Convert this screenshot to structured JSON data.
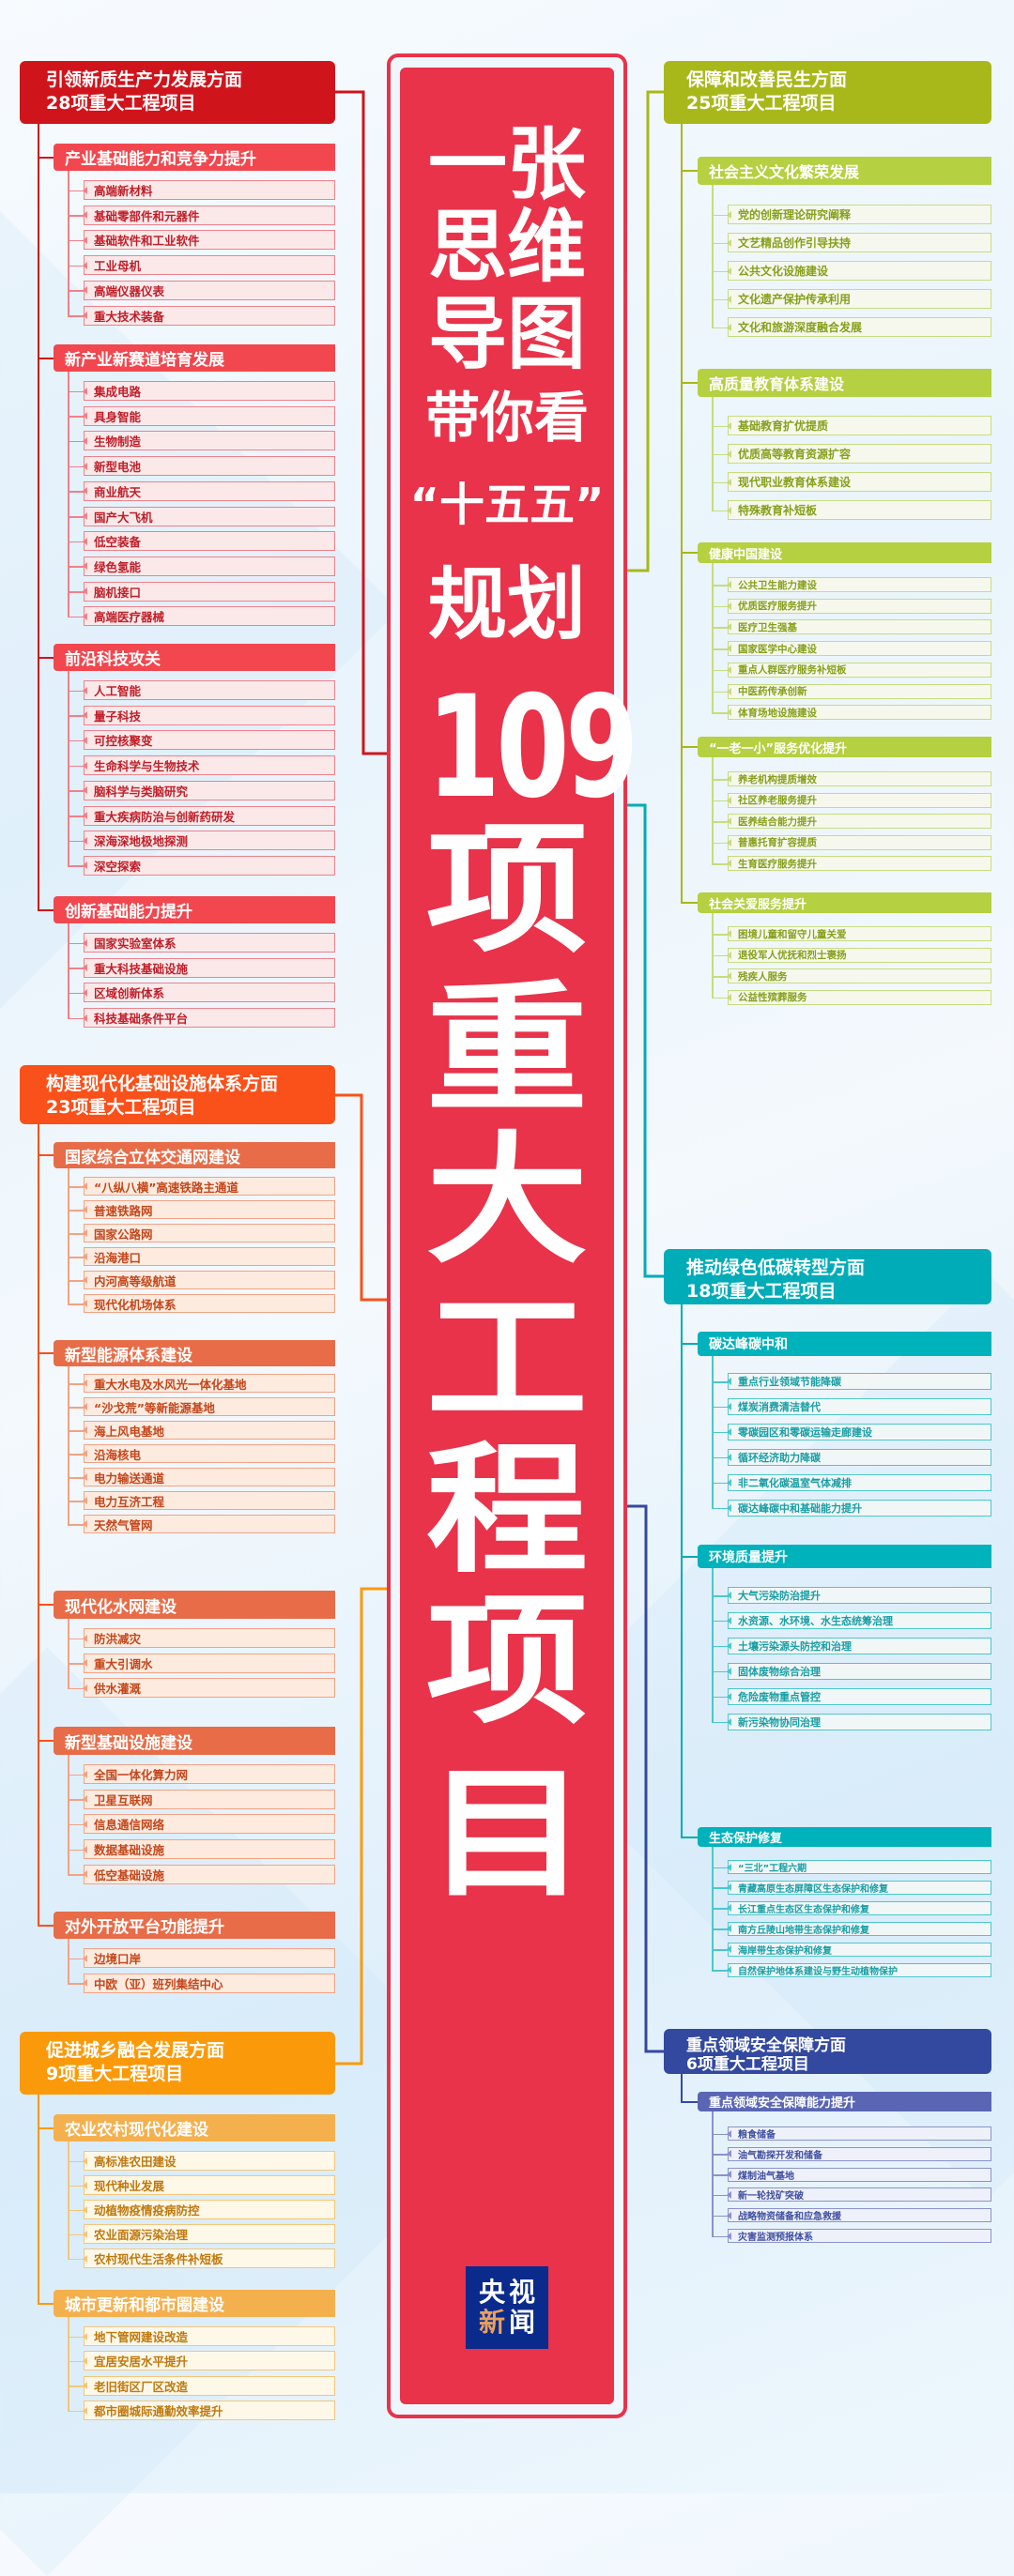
{
  "center": {
    "title_lines": [
      "一张",
      "思维",
      "导图",
      "带你看",
      "“十五五”",
      "规划",
      "109",
      "项",
      "重",
      "大",
      "工",
      "程",
      "项",
      "目"
    ],
    "logo": {
      "chars": [
        "央",
        "视",
        "新",
        "闻"
      ],
      "color_bg": "#0a2a8c",
      "accent": "#e8a060"
    },
    "color": "#e8334a"
  },
  "left": [
    {
      "title1": "引领新质生产力发展方面",
      "title2": "28项重大工程项目",
      "colors": {
        "header": "#d0141c",
        "sub": "#f2474f",
        "item_bg": "#fbe9ea",
        "item_border": "#f08088",
        "text": "#c01e28"
      },
      "groups": [
        {
          "title": "产业基础能力和竞争力提升",
          "items": [
            "高端新材料",
            "基础零部件和元器件",
            "基础软件和工业软件",
            "工业母机",
            "高端仪器仪表",
            "重大技术装备"
          ]
        },
        {
          "title": "新产业新赛道培育发展",
          "items": [
            "集成电路",
            "具身智能",
            "生物制造",
            "新型电池",
            "商业航天",
            "国产大飞机",
            "低空装备",
            "绿色氢能",
            "脑机接口",
            "高端医疗器械"
          ]
        },
        {
          "title": "前沿科技攻关",
          "items": [
            "人工智能",
            "量子科技",
            "可控核聚变",
            "生命科学与生物技术",
            "脑科学与类脑研究",
            "重大疾病防治与创新药研发",
            "深海深地极地探测",
            "深空探索"
          ]
        },
        {
          "title": "创新基础能力提升",
          "items": [
            "国家实验室体系",
            "重大科技基础设施",
            "区域创新体系",
            "科技基础条件平台"
          ]
        }
      ]
    },
    {
      "title1": "构建现代化基础设施体系方面",
      "title2": "23项重大工程项目",
      "colors": {
        "header": "#fa501a",
        "sub": "#e86c48",
        "item_bg": "#fdebe0",
        "item_border": "#f3a283",
        "text": "#c4461a"
      },
      "groups": [
        {
          "title": "国家综合立体交通网建设",
          "items": [
            "“八纵八横”高速铁路主通道",
            "普速铁路网",
            "国家公路网",
            "沿海港口",
            "内河高等级航道",
            "现代化机场体系"
          ]
        },
        {
          "title": "新型能源体系建设",
          "items": [
            "重大水电及水风光一体化基地",
            "“沙戈荒”等新能源基地",
            "海上风电基地",
            "沿海核电",
            "电力输送通道",
            "电力互济工程",
            "天然气管网"
          ]
        },
        {
          "title": "现代化水网建设",
          "items": [
            "防洪减灾",
            "重大引调水",
            "供水灌溉"
          ]
        },
        {
          "title": "新型基础设施建设",
          "items": [
            "全国一体化算力网",
            "卫星互联网",
            "信息通信网络",
            "数据基础设施",
            "低空基础设施"
          ]
        },
        {
          "title": "对外开放平台功能提升",
          "items": [
            "边境口岸",
            "中欧（亚）班列集结中心"
          ]
        }
      ]
    },
    {
      "title1": "促进城乡融合发展方面",
      "title2": "9项重大工程项目",
      "colors": {
        "header": "#fa9a0a",
        "sub": "#f5b04e",
        "item_bg": "#fdf8e8",
        "item_border": "#f5c57a",
        "text": "#c0780e"
      },
      "groups": [
        {
          "title": "农业农村现代化建设",
          "items": [
            "高标准农田建设",
            "现代种业发展",
            "动植物疫情疫病防控",
            "农业面源污染治理",
            "农村现代生活条件补短板"
          ]
        },
        {
          "title": "城市更新和都市圈建设",
          "items": [
            "地下管网建设改造",
            "宜居安居水平提升",
            "老旧街区厂区改造",
            "都市圈城际通勤效率提升"
          ]
        }
      ]
    }
  ],
  "right": [
    {
      "title1": "保障和改善民生方面",
      "title2": "25项重大工程项目",
      "colors": {
        "header": "#a8b81a",
        "sub": "#b5d040",
        "item_bg": "#f6f8ee",
        "item_border": "#c7dc7f",
        "text": "#86a01c"
      },
      "groups": [
        {
          "title": "社会主义文化繁荣发展",
          "items": [
            "党的创新理论研究阐释",
            "文艺精品创作引导扶持",
            "公共文化设施建设",
            "文化遗产保护传承利用",
            "文化和旅游深度融合发展"
          ]
        },
        {
          "title": "高质量教育体系建设",
          "items": [
            "基础教育扩优提质",
            "优质高等教育资源扩容",
            "现代职业教育体系建设",
            "特殊教育补短板"
          ]
        },
        {
          "title": "健康中国建设",
          "items": [
            "公共卫生能力建设",
            "优质医疗服务提升",
            "医疗卫生强基",
            "国家医学中心建设",
            "重点人群医疗服务补短板",
            "中医药传承创新",
            "体育场地设施建设"
          ]
        },
        {
          "title": "“一老一小”服务优化提升",
          "items": [
            "养老机构提质增效",
            "社区养老服务提升",
            "医养结合能力提升",
            "普惠托育扩容提质",
            "生育医疗服务提升"
          ]
        },
        {
          "title": "社会关爱服务提升",
          "items": [
            "困境儿童和留守儿童关爱",
            "退役军人优抚和烈士褒扬",
            "残疾人服务",
            "公益性殡葬服务"
          ]
        }
      ]
    },
    {
      "title1": "推动绿色低碳转型方面",
      "title2": "18项重大工程项目",
      "colors": {
        "header": "#00acb8",
        "sub": "#00b2bb",
        "item_bg": "#f1f7f6",
        "item_border": "#4cc7cd",
        "text": "#1a9ea6"
      },
      "groups": [
        {
          "title": "碳达峰碳中和",
          "items": [
            "重点行业领域节能降碳",
            "煤炭消费清洁替代",
            "零碳园区和零碳运输走廊建设",
            "循环经济助力降碳",
            "非二氧化碳温室气体减排",
            "碳达峰碳中和基础能力提升"
          ]
        },
        {
          "title": "环境质量提升",
          "items": [
            "大气污染防治提升",
            "水资源、水环境、水生态统筹治理",
            "土壤污染源头防控和治理",
            "固体废物综合治理",
            "危险废物重点管控",
            "新污染物协同治理"
          ]
        },
        {
          "title": "生态保护修复",
          "items": [
            "“三北”工程六期",
            "青藏高原生态屏障区生态保护和修复",
            "长江重点生态区生态保护和修复",
            "南方丘陵山地带生态保护和修复",
            "海岸带生态保护和修复",
            "自然保护地体系建设与野生动植物保护"
          ]
        }
      ]
    },
    {
      "title1": "重点领域安全保障方面",
      "title2": "6项重大工程项目",
      "colors": {
        "header": "#33499f",
        "sub": "#5a66b4",
        "item_bg": "#eef0fa",
        "item_border": "#8a92cc",
        "text": "#4050a0"
      },
      "groups": [
        {
          "title": "重点领域安全保障能力提升",
          "items": [
            "粮食储备",
            "油气勘探开发和储备",
            "煤制油气基地",
            "新一轮找矿突破",
            "战略物资储备和应急救援",
            "灾害监测预报体系"
          ]
        }
      ]
    }
  ]
}
